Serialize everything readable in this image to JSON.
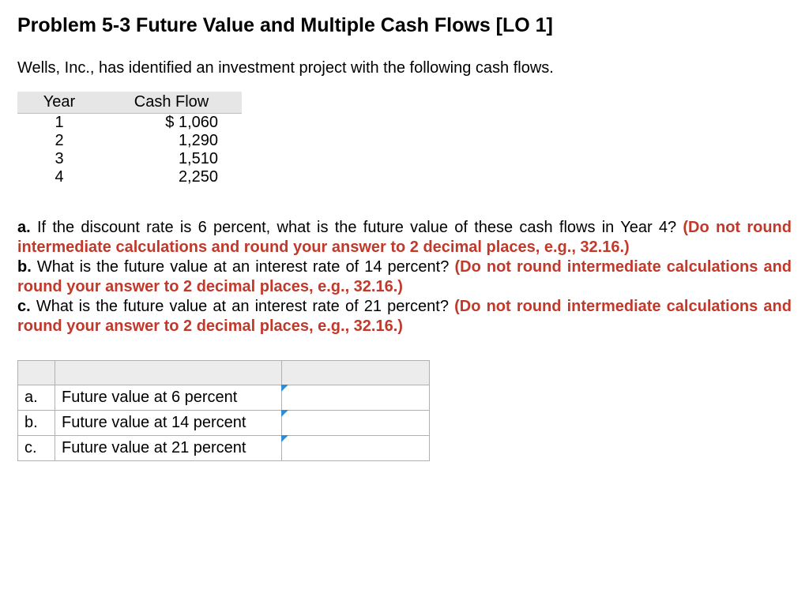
{
  "title": "Problem 5-3 Future Value and Multiple Cash Flows [LO 1]",
  "intro": "Wells, Inc., has identified an investment project with the following cash flows.",
  "cashflow_table": {
    "columns": [
      "Year",
      "Cash Flow"
    ],
    "rows": [
      {
        "year": "1",
        "cf": "$ 1,060"
      },
      {
        "year": "2",
        "cf": "1,290"
      },
      {
        "year": "3",
        "cf": "1,510"
      },
      {
        "year": "4",
        "cf": "2,250"
      }
    ]
  },
  "questions": {
    "a": {
      "label": "a.",
      "text": "If the discount rate is 6 percent, what is the future value of these cash flows in Year 4?",
      "instruction": "(Do not round intermediate calculations and round your answer to 2 decimal places, e.g., 32.16.)"
    },
    "b": {
      "label": "b.",
      "text": "What is the future value at an interest rate of 14 percent?",
      "instruction": "(Do not round intermediate calculations and round your answer to 2 decimal places, e.g., 32.16.)"
    },
    "c": {
      "label": "c.",
      "text": "What is the future value at an interest rate of 21 percent?",
      "instruction": "(Do not round intermediate calculations and round your answer to 2 decimal places, e.g., 32.16.)"
    }
  },
  "answer_table": {
    "rows": [
      {
        "label": "a.",
        "desc": "Future value at 6 percent",
        "value": ""
      },
      {
        "label": "b.",
        "desc": "Future value at 14 percent",
        "value": ""
      },
      {
        "label": "c.",
        "desc": "Future value at 21 percent",
        "value": ""
      }
    ]
  },
  "colors": {
    "instruction_red": "#c0392b",
    "header_gray": "#e6e6e6",
    "border_gray": "#b0b0b0",
    "caret_blue": "#2e8bd6"
  }
}
